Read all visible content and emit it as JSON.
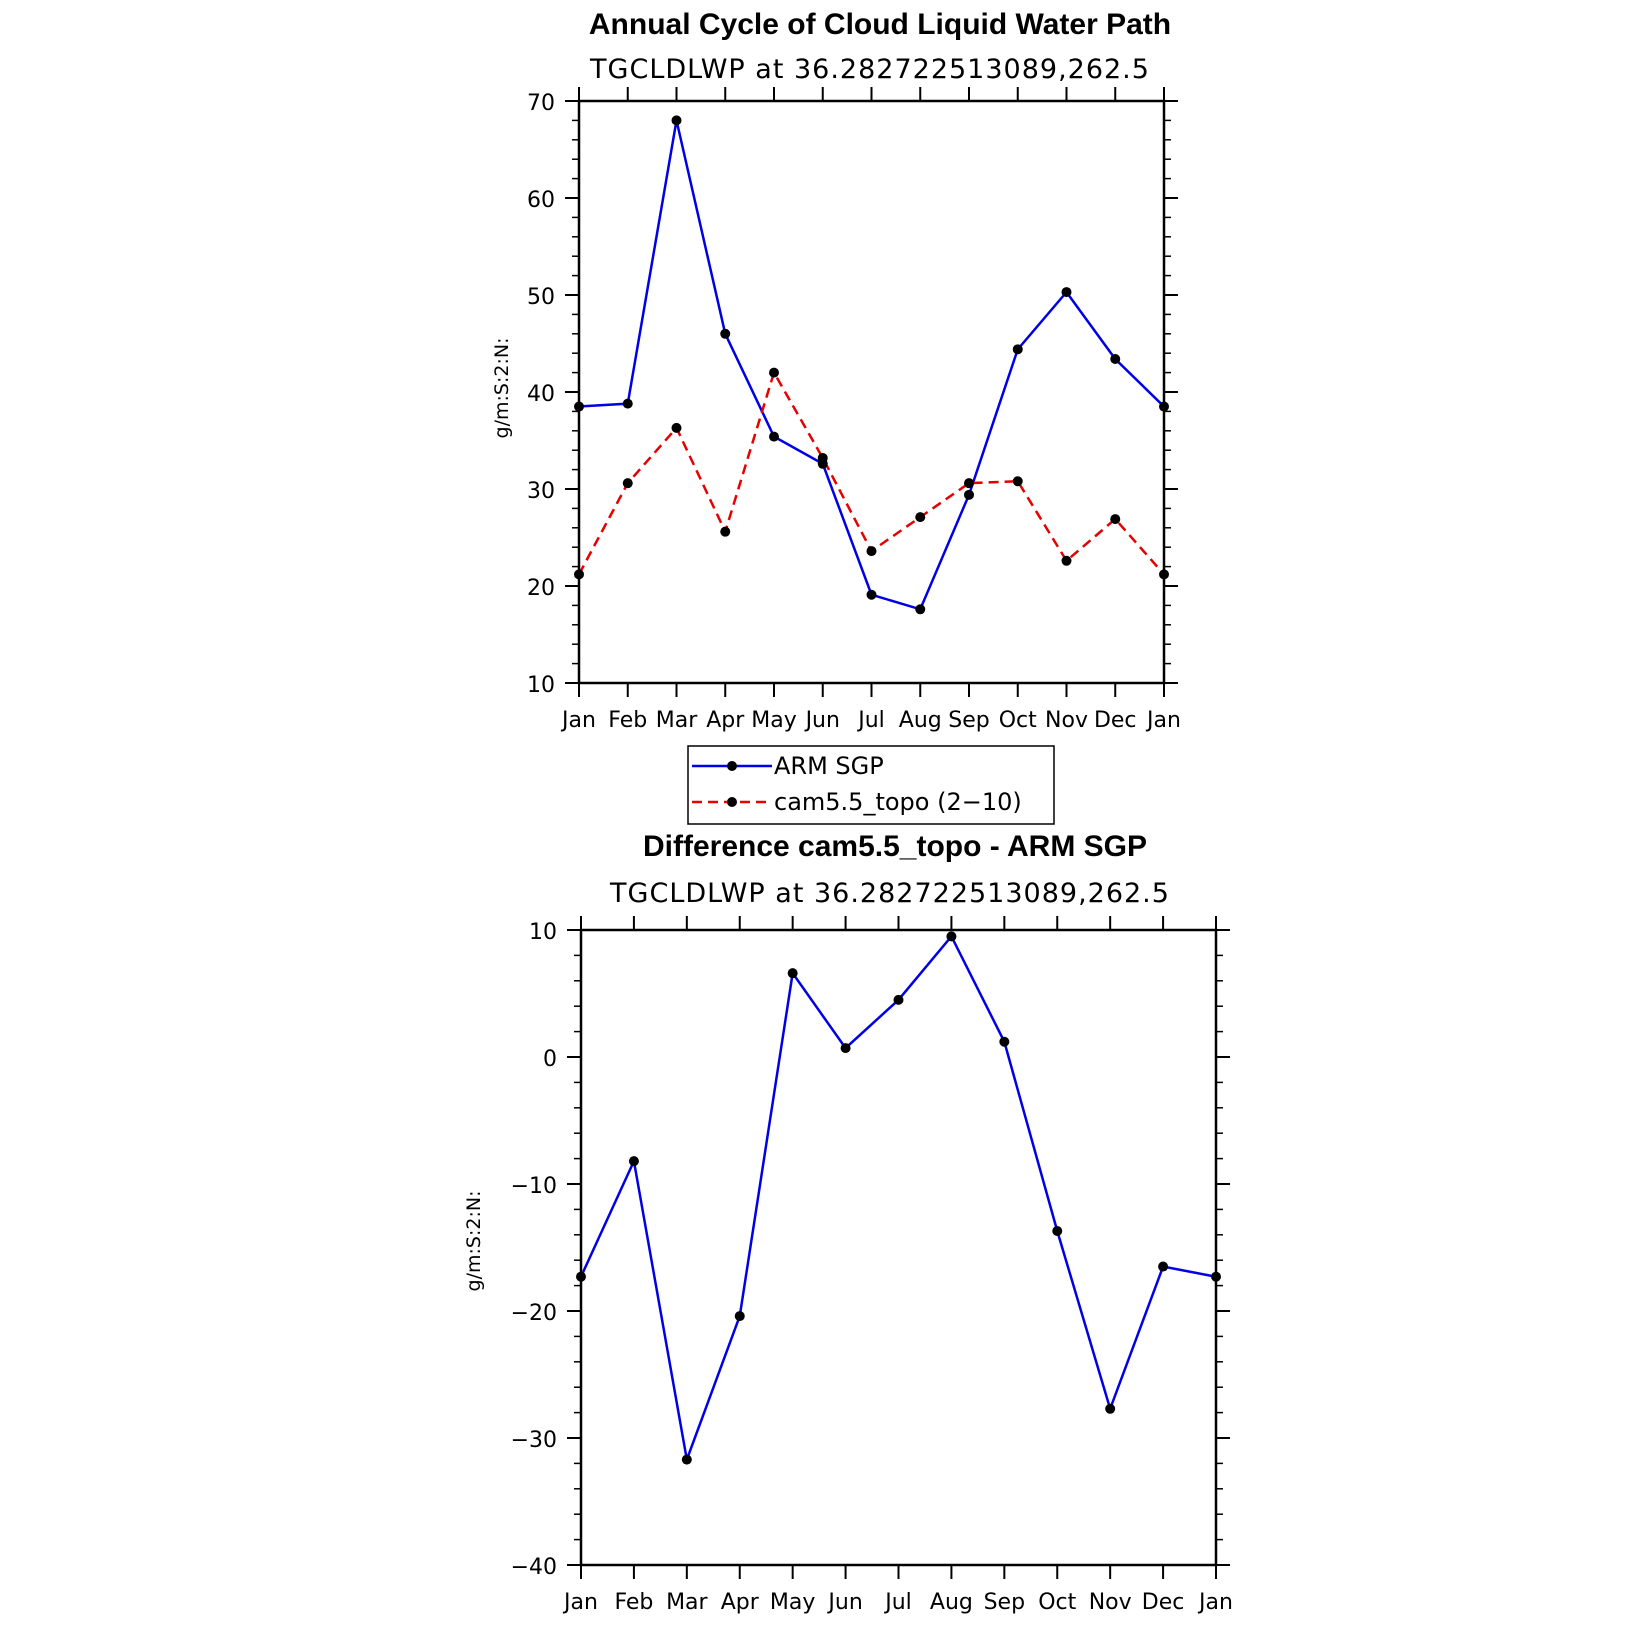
{
  "legend": {
    "entries": [
      "ARM SGP",
      "cam5.5_topo (2−10)"
    ]
  },
  "chart_data": [
    {
      "type": "line",
      "title": "Annual Cycle of Cloud Liquid Water Path",
      "subtitle": "TGCLDLWP at 36.282722513089,262.5",
      "xlabel": "",
      "ylabel": "g/m:S:2:N:",
      "categories": [
        "Jan",
        "Feb",
        "Mar",
        "Apr",
        "May",
        "Jun",
        "Jul",
        "Aug",
        "Sep",
        "Oct",
        "Nov",
        "Dec",
        "Jan"
      ],
      "ylim": [
        10,
        70
      ],
      "yticks": [
        10,
        20,
        30,
        40,
        50,
        60,
        70
      ],
      "ytick_labels": [
        "10",
        "20",
        "30",
        "40",
        "50",
        "60",
        "70"
      ],
      "grid": false,
      "legend_position": "below",
      "series": [
        {
          "name": "ARM SGP",
          "color": "#0000e6",
          "dash": "solid",
          "values": [
            38.5,
            38.8,
            68.0,
            46.0,
            35.4,
            32.6,
            19.1,
            17.6,
            29.4,
            44.4,
            50.3,
            43.4,
            38.5
          ]
        },
        {
          "name": "cam5.5_topo (2−10)",
          "color": "#e60000",
          "dash": "dashed",
          "values": [
            21.2,
            30.6,
            36.3,
            25.6,
            42.0,
            33.2,
            23.6,
            27.1,
            30.6,
            30.8,
            22.6,
            26.9,
            21.2
          ]
        }
      ]
    },
    {
      "type": "line",
      "title": "Difference cam5.5_topo - ARM SGP",
      "subtitle": "TGCLDLWP at 36.282722513089,262.5",
      "xlabel": "",
      "ylabel": "g/m:S:2:N:",
      "categories": [
        "Jan",
        "Feb",
        "Mar",
        "Apr",
        "May",
        "Jun",
        "Jul",
        "Aug",
        "Sep",
        "Oct",
        "Nov",
        "Dec",
        "Jan"
      ],
      "ylim": [
        -40,
        10
      ],
      "yticks": [
        -40,
        -30,
        -20,
        -10,
        0,
        10
      ],
      "ytick_labels": [
        "−40",
        "−30",
        "−20",
        "−10",
        "0",
        "10"
      ],
      "grid": false,
      "series": [
        {
          "color": "#0000e6",
          "dash": "solid",
          "values": [
            -17.3,
            -8.2,
            -31.7,
            -20.4,
            6.6,
            0.7,
            4.5,
            9.5,
            1.2,
            -13.7,
            -27.7,
            -16.5,
            -17.3
          ]
        }
      ]
    }
  ]
}
